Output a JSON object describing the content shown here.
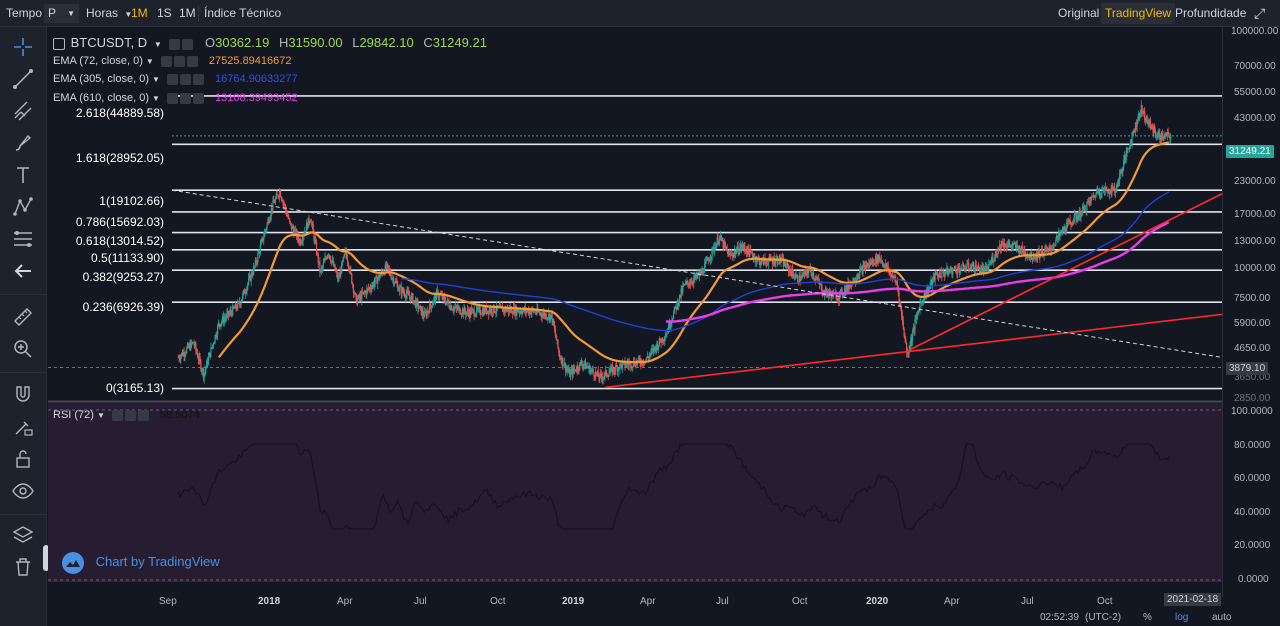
{
  "topbar": {
    "tempo_label": "Tempo",
    "tempo_value": "P",
    "horas_label": "Horas",
    "intervals": [
      "1M",
      "1S",
      "1M"
    ],
    "indice_tecnico": "Índice Técnico",
    "views": [
      "Original",
      "TradingView",
      "Profundidade"
    ],
    "active_view": "TradingView"
  },
  "legend": {
    "symbol": "BTCUSDT, D",
    "o_label": "O",
    "o_value": "30362.19",
    "h_label": "H",
    "h_value": "31590.00",
    "l_label": "L",
    "l_value": "29842.10",
    "c_label": "C",
    "c_value": "31249.21",
    "indicators": [
      {
        "label": "EMA (72, close, 0)",
        "value": "27525.89416672",
        "color": "#f29a38"
      },
      {
        "label": "EMA (305, close, 0)",
        "value": "16764.90633277",
        "color": "#2240d8"
      },
      {
        "label": "EMA (610, close, 0)",
        "value": "13108.39493452",
        "color": "#e83ee8"
      }
    ],
    "rsi": {
      "label": "RSI (72)",
      "value": "58.5074"
    }
  },
  "fib_levels": [
    {
      "label": "2.618(44889.58)",
      "price": 44889.58
    },
    {
      "label": "1.618(28952.05)",
      "price": 28952.05
    },
    {
      "label": "1(19102.66)",
      "price": 19102.66
    },
    {
      "label": "0.786(15692.03)",
      "price": 15692.03
    },
    {
      "label": "0.618(13014.52)",
      "price": 13014.52
    },
    {
      "label": "0.5(11133.90)",
      "price": 11133.9
    },
    {
      "label": "0.382(9253.27)",
      "price": 9253.27
    },
    {
      "label": "0.236(6926.39)",
      "price": 6926.39
    },
    {
      "label": "0(3165.13)",
      "price": 3165.13
    }
  ],
  "price_axis": [
    "100000.00",
    "70000.00",
    "55000.00",
    "43000.00",
    "31249.21",
    "23000.00",
    "17000.00",
    "13000.00",
    "10000.00",
    "7500.00",
    "5900.00",
    "4650.00",
    "3879.10",
    "3650.00",
    "2850.00"
  ],
  "price_tags": {
    "last": {
      "text": "31249.21",
      "color": "#26a69a"
    },
    "cursor": {
      "text": "3879.10",
      "color": "#363a45"
    }
  },
  "rsi_axis": [
    "100.0000",
    "80.0000",
    "60.0000",
    "40.0000",
    "20.0000",
    "0.0000"
  ],
  "time_axis": [
    "Sep",
    "2018",
    "Apr",
    "Jul",
    "Oct",
    "2019",
    "Apr",
    "Jul",
    "Oct",
    "2020",
    "Apr",
    "Jul",
    "Oct"
  ],
  "time_cursor": "2021-02-18",
  "footer": {
    "clock": "02:52:39",
    "tz": "(UTC-2)",
    "pct": "%",
    "log": "log",
    "auto": "auto"
  },
  "watermark": "Chart by TradingView",
  "colors": {
    "bg": "#131722",
    "candle_up": "#26a69a",
    "candle_down": "#ef5350",
    "ema72": "#f29a38",
    "ema305": "#2240d8",
    "ema610": "#e83ee8",
    "trendline": "#ff2a2a",
    "rsi_bg": "#261d33",
    "accent": "#f0b90b"
  },
  "icons": [
    "crosshair-icon",
    "trendline-icon",
    "pitchfork-icon",
    "brush-icon",
    "text-icon",
    "pattern-icon",
    "fib-icon",
    "arrow-icon",
    "ruler-icon",
    "zoom-icon",
    "magnet-icon",
    "lock-drawing-icon",
    "lock-icon",
    "eye-icon",
    "layers-icon",
    "trash-icon"
  ]
}
